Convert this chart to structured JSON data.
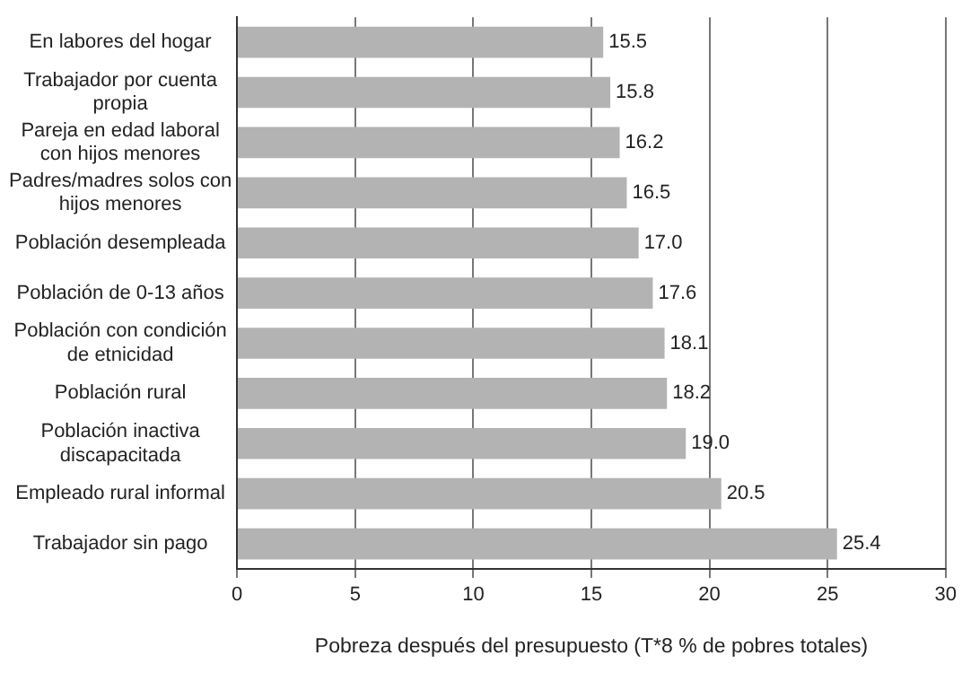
{
  "chart_data": {
    "type": "bar",
    "orientation": "horizontal",
    "xlabel": "Pobreza después del presupuesto (T*8 % de pobres totales)",
    "categories": [
      "En labores del hogar",
      "Trabajador por cuenta propia",
      "Pareja en edad laboral con hijos menores",
      "Padres/madres solos con hijos menores",
      "Población desempleada",
      "Población de 0-13 años",
      "Población con condición de etnicidad",
      "Población rural",
      "Población inactiva discapacitada",
      "Empleado rural informal",
      "Trabajador sin pago"
    ],
    "values": [
      15.5,
      15.8,
      16.2,
      16.5,
      17.0,
      17.6,
      18.1,
      18.2,
      19.0,
      20.5,
      25.4
    ],
    "value_labels": [
      "15.5",
      "15.8",
      "16.2",
      "16.5",
      "17.0",
      "17.6",
      "18.1",
      "18.2",
      "19.0",
      "20.5",
      "25.4"
    ],
    "color": "#b3b3b3",
    "xlim": [
      0,
      30
    ],
    "xticks": [
      0,
      5,
      10,
      15,
      20,
      25,
      30
    ],
    "grid": "x"
  }
}
